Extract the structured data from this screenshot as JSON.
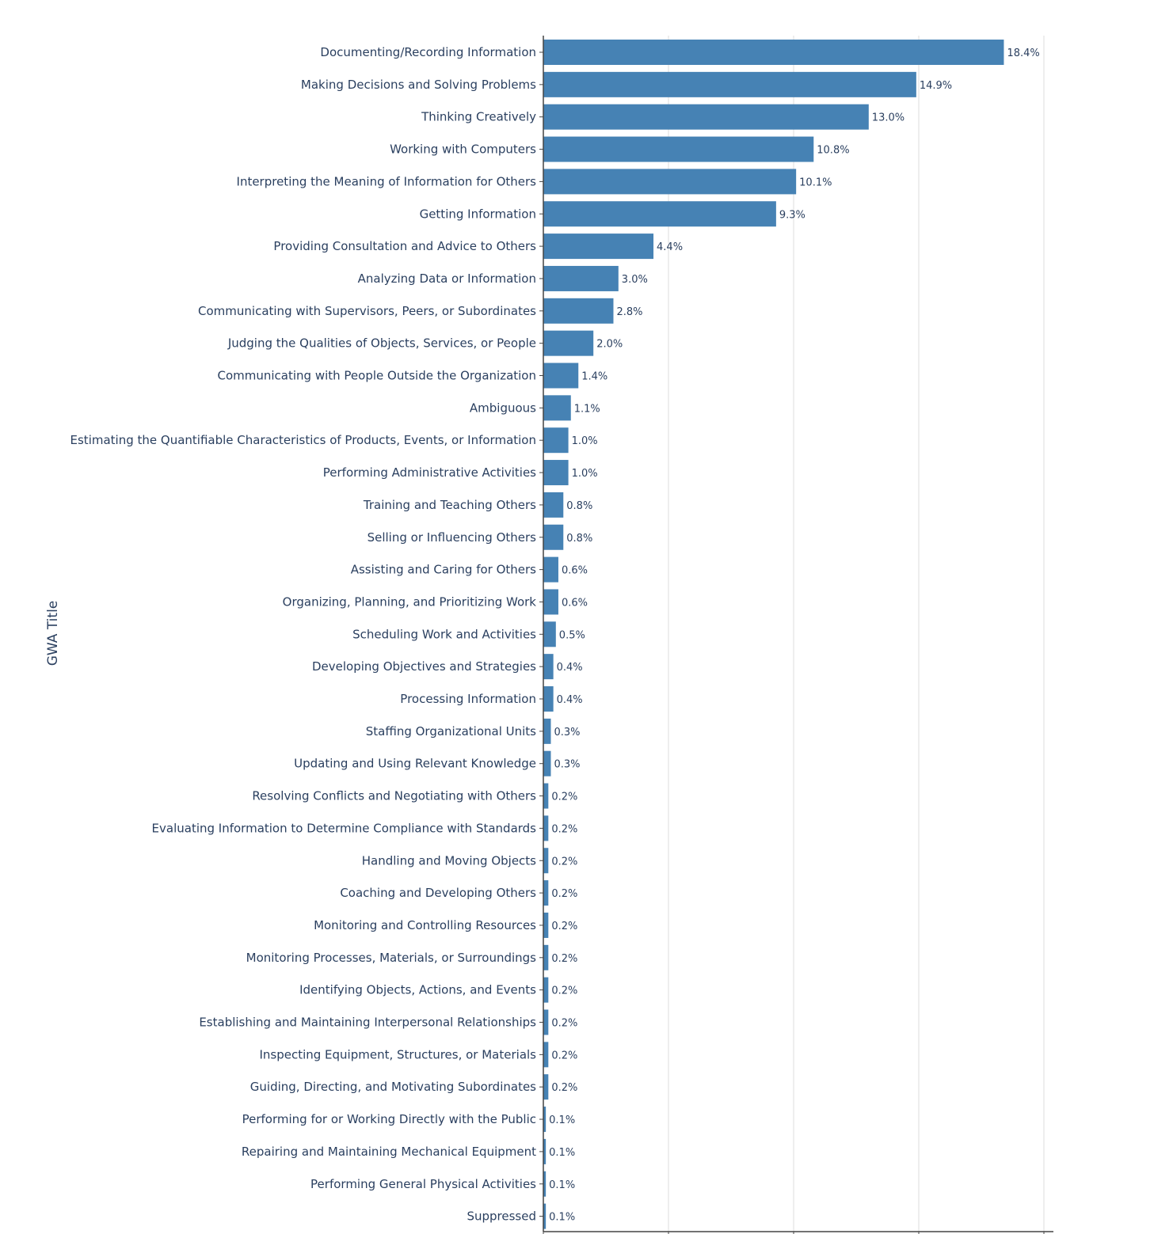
{
  "chart_data": {
    "type": "bar",
    "orientation": "horizontal",
    "ylabel": "GWA Title",
    "xlim": [
      0,
      20
    ],
    "x_gridlines": [
      5,
      10,
      15,
      20
    ],
    "grid": true,
    "bar_color": "#4682b4",
    "categories": [
      "Documenting/Recording Information",
      "Making Decisions and Solving Problems",
      "Thinking Creatively",
      "Working with Computers",
      "Interpreting the Meaning of Information for Others",
      "Getting Information",
      "Providing Consultation and Advice to Others",
      "Analyzing Data or Information",
      "Communicating with Supervisors, Peers, or Subordinates",
      "Judging the Qualities of Objects, Services, or People",
      "Communicating with People Outside the Organization",
      "Ambiguous",
      "Estimating the Quantifiable Characteristics of Products, Events, or Information",
      "Performing Administrative Activities",
      "Training and Teaching Others",
      "Selling or Influencing Others",
      "Assisting and Caring for Others",
      "Organizing, Planning, and Prioritizing Work",
      "Scheduling Work and Activities",
      "Developing Objectives and Strategies",
      "Processing Information",
      "Staffing Organizational Units",
      "Updating and Using Relevant Knowledge",
      "Resolving Conflicts and Negotiating with Others",
      "Evaluating Information to Determine Compliance with Standards",
      "Handling and Moving Objects",
      "Coaching and Developing Others",
      "Monitoring and Controlling Resources",
      "Monitoring Processes, Materials, or Surroundings",
      "Identifying Objects, Actions, and Events",
      "Establishing and Maintaining Interpersonal Relationships",
      "Inspecting Equipment, Structures, or Materials",
      "Guiding, Directing, and Motivating Subordinates",
      "Performing for or Working Directly with the Public",
      "Repairing and Maintaining Mechanical Equipment",
      "Performing General Physical Activities",
      "Suppressed"
    ],
    "values": [
      18.4,
      14.9,
      13.0,
      10.8,
      10.1,
      9.3,
      4.4,
      3.0,
      2.8,
      2.0,
      1.4,
      1.1,
      1.0,
      1.0,
      0.8,
      0.8,
      0.6,
      0.6,
      0.5,
      0.4,
      0.4,
      0.3,
      0.3,
      0.2,
      0.2,
      0.2,
      0.2,
      0.2,
      0.2,
      0.2,
      0.2,
      0.2,
      0.2,
      0.1,
      0.1,
      0.1,
      0.1
    ],
    "value_labels": [
      "18.4%",
      "14.9%",
      "13.0%",
      "10.8%",
      "10.1%",
      "9.3%",
      "4.4%",
      "3.0%",
      "2.8%",
      "2.0%",
      "1.4%",
      "1.1%",
      "1.0%",
      "1.0%",
      "0.8%",
      "0.8%",
      "0.6%",
      "0.6%",
      "0.5%",
      "0.4%",
      "0.4%",
      "0.3%",
      "0.3%",
      "0.2%",
      "0.2%",
      "0.2%",
      "0.2%",
      "0.2%",
      "0.2%",
      "0.2%",
      "0.2%",
      "0.2%",
      "0.2%",
      "0.1%",
      "0.1%",
      "0.1%",
      "0.1%"
    ]
  }
}
